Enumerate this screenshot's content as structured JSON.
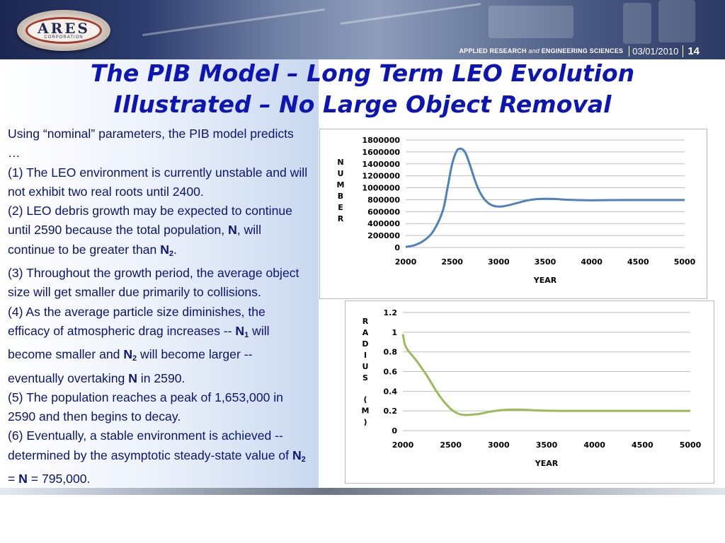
{
  "header": {
    "logo_text": "ARES",
    "logo_subtext": "CORPORATION",
    "tagline_a": "APPLIED RESEARCH",
    "tagline_and": "and",
    "tagline_b": "ENGINEERING SCIENCES",
    "date": "03/01/2010",
    "slide_number": "14"
  },
  "title": {
    "line1": "The PIB Model – Long Term LEO Evolution",
    "line2": "Illustrated – No Large Object Removal"
  },
  "body": {
    "intro": "Using “nominal” parameters, the PIB model predicts …",
    "p1": "(1) The LEO environment is currently unstable and will not exhibit two real roots until 2400.",
    "p2_a": "(2)  LEO debris growth may be expected to continue until 2590 because the total population, ",
    "p2_N": "N",
    "p2_b": ", will continue to be greater than ",
    "p2_N2": "N",
    "p2_sub": "2",
    "p2_c": ".",
    "p3": "(3)  Throughout the growth period, the average object size will get smaller due primarily to collisions.",
    "p4_a": "(4)  As the average particle size diminishes, the efficacy of atmospheric drag increases --  ",
    "p4_N1": "N",
    "p4_sub1": "1",
    "p4_b": " will become smaller and ",
    "p4_N2": "N",
    "p4_sub2": "2",
    "p4_c": " will become larger -- eventually overtaking ",
    "p4_N": "N",
    "p4_d": " in 2590.",
    "p5": "(5)  The population reaches a peak of 1,653,000 in 2590 and then begins to decay.",
    "p6_a": "(6)  Eventually, a stable environment is achieved -- determined by the asymptotic steady-state value of ",
    "p6_N2": "N",
    "p6_sub": "2",
    "p6_b": " = ",
    "p6_N": "N",
    "p6_c": " = 795,000."
  },
  "colors": {
    "title": "#0d16b4",
    "body_text": "#0c1472",
    "chart1_line": "#4f81bd",
    "chart2_line": "#9bbb59",
    "gridline": "#bfbfbf"
  },
  "chart_data": [
    {
      "type": "line",
      "xlabel": "YEAR",
      "ylabel": "NUMBER",
      "xlim": [
        2000,
        5000
      ],
      "ylim": [
        0,
        1800000
      ],
      "xticks": [
        "2000",
        "2500",
        "3000",
        "3500",
        "4000",
        "4500",
        "5000"
      ],
      "yticks": [
        "0",
        "200000",
        "400000",
        "600000",
        "800000",
        "1000000",
        "1200000",
        "1400000",
        "1600000",
        "1800000"
      ],
      "grid": true,
      "series": [
        {
          "x": [
            2000,
            2100,
            2200,
            2300,
            2400,
            2450,
            2500,
            2550,
            2590,
            2620,
            2650,
            2700,
            2750,
            2800,
            2850,
            2900,
            2950,
            3000,
            3050,
            3100,
            3200,
            3300,
            3400,
            3500,
            3600,
            3700,
            3800,
            4000,
            4200,
            4500,
            4800,
            5000
          ],
          "y": [
            10000,
            40000,
            120000,
            280000,
            620000,
            1000000,
            1400000,
            1620000,
            1653000,
            1630000,
            1560000,
            1340000,
            1100000,
            920000,
            800000,
            730000,
            695000,
            685000,
            690000,
            705000,
            745000,
            785000,
            808000,
            815000,
            812000,
            803000,
            796000,
            790000,
            793000,
            795000,
            795000,
            795000
          ]
        }
      ]
    },
    {
      "type": "line",
      "xlabel": "YEAR",
      "ylabel": "RADIUS (M)",
      "xlim": [
        2000,
        5000
      ],
      "ylim": [
        0,
        1.2
      ],
      "xticks": [
        "2000",
        "2500",
        "3000",
        "3500",
        "4000",
        "4500",
        "5000"
      ],
      "yticks": [
        "0",
        "0.2",
        "0.4",
        "0.6",
        "0.8",
        "1",
        "1.2"
      ],
      "grid": true,
      "series": [
        {
          "x": [
            2000,
            2020,
            2050,
            2100,
            2150,
            2200,
            2250,
            2300,
            2350,
            2400,
            2450,
            2500,
            2550,
            2600,
            2650,
            2700,
            2750,
            2800,
            2900,
            3000,
            3100,
            3200,
            3300,
            3400,
            3500,
            3600,
            3700,
            4000,
            4500,
            5000
          ],
          "y": [
            0.98,
            0.88,
            0.82,
            0.76,
            0.7,
            0.63,
            0.56,
            0.48,
            0.4,
            0.33,
            0.27,
            0.22,
            0.185,
            0.165,
            0.158,
            0.16,
            0.165,
            0.17,
            0.19,
            0.205,
            0.212,
            0.213,
            0.21,
            0.205,
            0.202,
            0.201,
            0.2,
            0.2,
            0.2,
            0.2
          ]
        }
      ]
    }
  ]
}
